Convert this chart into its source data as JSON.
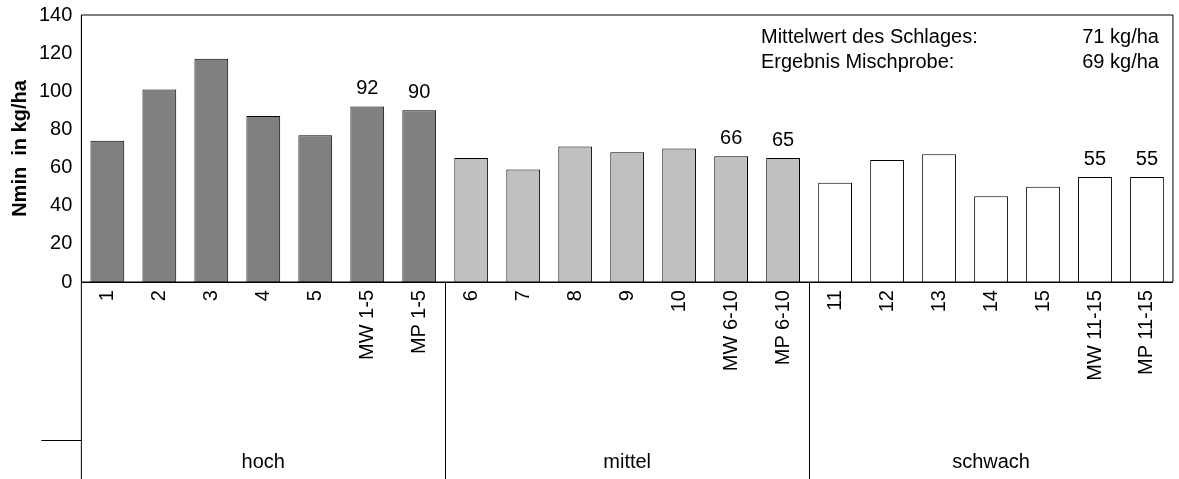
{
  "chart_data": {
    "type": "bar",
    "ylabel": "Nmin  in kg/ha",
    "categories": [
      "1",
      "2",
      "3",
      "4",
      "5",
      "MW 1-5",
      "MP 1-5",
      "6",
      "7",
      "8",
      "9",
      "10",
      "MW 6-10",
      "MP 6-10",
      "11",
      "12",
      "13",
      "14",
      "15",
      "MW 11-15",
      "MP 11-15"
    ],
    "values": [
      74,
      101,
      117,
      87,
      77,
      92,
      90,
      65,
      59,
      71,
      68,
      70,
      66,
      65,
      52,
      64,
      67,
      45,
      50,
      55,
      55
    ],
    "colors": [
      "#808080",
      "#808080",
      "#808080",
      "#808080",
      "#808080",
      "#808080",
      "#808080",
      "#c0c0c0",
      "#c0c0c0",
      "#c0c0c0",
      "#c0c0c0",
      "#c0c0c0",
      "#c0c0c0",
      "#c0c0c0",
      "#ffffff",
      "#ffffff",
      "#ffffff",
      "#ffffff",
      "#ffffff",
      "#ffffff",
      "#ffffff"
    ],
    "value_labels": [
      null,
      null,
      null,
      null,
      null,
      "92",
      "90",
      null,
      null,
      null,
      null,
      null,
      "66",
      "65",
      null,
      null,
      null,
      null,
      null,
      "55",
      "55"
    ],
    "ylim": [
      0,
      140
    ],
    "yticks": [
      0,
      20,
      40,
      60,
      80,
      100,
      120,
      140
    ],
    "grid": false,
    "legend": false,
    "annotations": [
      "Mittelwert des Schlages:   71 kg/ha",
      "Ergebnis Mischprobe:          69 kg/ha",
      "hoch",
      "mittel",
      "schwach"
    ]
  }
}
